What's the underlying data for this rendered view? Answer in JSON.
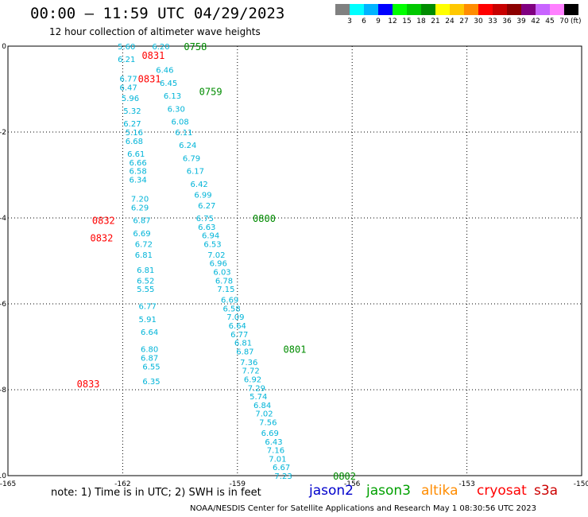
{
  "header": {
    "title": "00:00 – 11:59 UTC 04/29/2023",
    "subtitle": "12 hour collection of altimeter wave heights"
  },
  "colorbar": {
    "colors": [
      "#808080",
      "#00ffff",
      "#00b4ff",
      "#0000ff",
      "#00ff00",
      "#00c800",
      "#008c00",
      "#ffff00",
      "#ffc800",
      "#ff8c00",
      "#ff0000",
      "#c80000",
      "#8c0000",
      "#800080",
      "#c864ff",
      "#ff80ff",
      "#000000"
    ],
    "labels": [
      "3",
      "6",
      "9",
      "12",
      "15",
      "18",
      "21",
      "24",
      "27",
      "30",
      "33",
      "36",
      "39",
      "42",
      "45",
      "70"
    ],
    "unit": "(ft)"
  },
  "chart_data": {
    "type": "scatter",
    "title": "12 hour collection of altimeter wave heights",
    "xlim": [
      -165,
      -150
    ],
    "ylim": [
      -10,
      0
    ],
    "x_ticks": [
      "-165",
      "-162",
      "-159",
      "-156",
      "-153",
      "-150"
    ],
    "y_ticks": [
      "0",
      "-2",
      "-4",
      "-6",
      "-8",
      "-10"
    ],
    "grid": true,
    "series": [
      {
        "name": "jason3",
        "color": "#008c00",
        "points": [
          {
            "x": -161.0,
            "y": 0.0,
            "label": "6.20"
          },
          {
            "x": -160.9,
            "y": -0.55,
            "label": "6.46"
          },
          {
            "x": -160.8,
            "y": -0.85,
            "label": "6.45"
          },
          {
            "x": -160.7,
            "y": -1.15,
            "label": "6.13"
          },
          {
            "x": -160.6,
            "y": -1.45,
            "label": "6.30"
          },
          {
            "x": -160.5,
            "y": -1.75,
            "label": "6.08"
          },
          {
            "x": -160.4,
            "y": -2.0,
            "label": "6.11"
          },
          {
            "x": -160.3,
            "y": -2.3,
            "label": "6.24"
          },
          {
            "x": -160.2,
            "y": -2.6,
            "label": "6.79"
          },
          {
            "x": -160.1,
            "y": -2.9,
            "label": "6.17"
          },
          {
            "x": -160.0,
            "y": -3.2,
            "label": "6.42"
          },
          {
            "x": -159.9,
            "y": -3.45,
            "label": "6.99"
          },
          {
            "x": -159.8,
            "y": -3.7,
            "label": "6.27"
          },
          {
            "x": -159.85,
            "y": -4.0,
            "label": "6.75"
          },
          {
            "x": -159.8,
            "y": -4.2,
            "label": "6.63"
          },
          {
            "x": -159.7,
            "y": -4.4,
            "label": "6.94"
          },
          {
            "x": -159.65,
            "y": -4.6,
            "label": "6.53"
          },
          {
            "x": -159.55,
            "y": -4.85,
            "label": "7.02"
          },
          {
            "x": -159.5,
            "y": -5.05,
            "label": "6.96"
          },
          {
            "x": -159.4,
            "y": -5.25,
            "label": "6.03"
          },
          {
            "x": -159.35,
            "y": -5.45,
            "label": "6.78"
          },
          {
            "x": -159.3,
            "y": -5.65,
            "label": "7.15"
          },
          {
            "x": -159.2,
            "y": -5.9,
            "label": "6.69"
          },
          {
            "x": -159.15,
            "y": -6.1,
            "label": "6.58"
          },
          {
            "x": -159.05,
            "y": -6.3,
            "label": "7.09"
          },
          {
            "x": -159.0,
            "y": -6.5,
            "label": "6.64"
          },
          {
            "x": -158.95,
            "y": -6.7,
            "label": "6.77"
          },
          {
            "x": -158.85,
            "y": -6.9,
            "label": "6.81"
          },
          {
            "x": -158.8,
            "y": -7.1,
            "label": "6.87"
          },
          {
            "x": -158.7,
            "y": -7.35,
            "label": "7.36"
          },
          {
            "x": -158.65,
            "y": -7.55,
            "label": "7.72"
          },
          {
            "x": -158.6,
            "y": -7.75,
            "label": "6.92"
          },
          {
            "x": -158.5,
            "y": -7.95,
            "label": "7.29"
          },
          {
            "x": -158.45,
            "y": -8.15,
            "label": "5.74"
          },
          {
            "x": -158.35,
            "y": -8.35,
            "label": "6.84"
          },
          {
            "x": -158.3,
            "y": -8.55,
            "label": "7.02"
          },
          {
            "x": -158.2,
            "y": -8.75,
            "label": "7.56"
          },
          {
            "x": -158.15,
            "y": -9.0,
            "label": "6.69"
          },
          {
            "x": -158.05,
            "y": -9.2,
            "label": "6.43"
          },
          {
            "x": -158.0,
            "y": -9.4,
            "label": "7.16"
          },
          {
            "x": -157.95,
            "y": -9.6,
            "label": "7.01"
          },
          {
            "x": -157.85,
            "y": -9.8,
            "label": "6.67"
          },
          {
            "x": -157.8,
            "y": -10.0,
            "label": "7.23"
          }
        ]
      },
      {
        "name": "cryosat",
        "color": "#00cccc",
        "points": [
          {
            "x": -161.9,
            "y": 0.0,
            "label": "5.60"
          },
          {
            "x": -161.9,
            "y": -0.3,
            "label": "6.21"
          },
          {
            "x": -161.85,
            "y": -0.75,
            "label": "6.77"
          },
          {
            "x": -161.85,
            "y": -0.95,
            "label": "6.47"
          },
          {
            "x": -161.8,
            "y": -1.2,
            "label": "5.96"
          },
          {
            "x": -161.75,
            "y": -1.5,
            "label": "5.32"
          },
          {
            "x": -161.75,
            "y": -1.8,
            "label": "6.27"
          },
          {
            "x": -161.7,
            "y": -2.0,
            "label": "5.16"
          },
          {
            "x": -161.7,
            "y": -2.2,
            "label": "6.68"
          },
          {
            "x": -161.65,
            "y": -2.5,
            "label": "6.61"
          },
          {
            "x": -161.6,
            "y": -2.7,
            "label": "6.66"
          },
          {
            "x": -161.6,
            "y": -2.9,
            "label": "6.58"
          },
          {
            "x": -161.6,
            "y": -3.1,
            "label": "6.34"
          },
          {
            "x": -161.55,
            "y": -3.55,
            "label": "7.20"
          },
          {
            "x": -161.55,
            "y": -3.75,
            "label": "6.29"
          },
          {
            "x": -161.5,
            "y": -4.05,
            "label": "6.87"
          },
          {
            "x": -161.5,
            "y": -4.35,
            "label": "6.69"
          },
          {
            "x": -161.45,
            "y": -4.6,
            "label": "6.72"
          },
          {
            "x": -161.45,
            "y": -4.85,
            "label": "6.81"
          },
          {
            "x": -161.4,
            "y": -5.2,
            "label": "6.81"
          },
          {
            "x": -161.4,
            "y": -5.45,
            "label": "6.52"
          },
          {
            "x": -161.4,
            "y": -5.65,
            "label": "5.55"
          },
          {
            "x": -161.35,
            "y": -6.05,
            "label": "6.77"
          },
          {
            "x": -161.35,
            "y": -6.35,
            "label": "5.91"
          },
          {
            "x": -161.3,
            "y": -6.65,
            "label": "6.64"
          },
          {
            "x": -161.3,
            "y": -7.05,
            "label": "6.80"
          },
          {
            "x": -161.3,
            "y": -7.25,
            "label": "6.87"
          },
          {
            "x": -161.25,
            "y": -7.45,
            "label": "6.55"
          },
          {
            "x": -161.25,
            "y": -7.8,
            "label": "6.35"
          }
        ]
      }
    ],
    "pass_times": [
      {
        "text": "0758",
        "satellite": "jason3",
        "x": -160.1,
        "y": 0.0
      },
      {
        "text": "0759",
        "satellite": "jason3",
        "x": -159.7,
        "y": -1.05
      },
      {
        "text": "0800",
        "satellite": "jason3",
        "x": -158.3,
        "y": -4.0
      },
      {
        "text": "0801",
        "satellite": "jason3",
        "x": -157.5,
        "y": -7.05
      },
      {
        "text": "0802",
        "satellite": "jason3",
        "x": -156.2,
        "y": -10.0
      },
      {
        "text": "0831",
        "satellite": "cryosat",
        "x": -161.2,
        "y": -0.2
      },
      {
        "text": "0831",
        "satellite": "cryosat",
        "x": -161.3,
        "y": -0.75
      },
      {
        "text": "0832",
        "satellite": "cryosat",
        "x": -162.5,
        "y": -4.05
      },
      {
        "text": "0832",
        "satellite": "cryosat",
        "x": -162.55,
        "y": -4.45
      },
      {
        "text": "0833",
        "satellite": "cryosat",
        "x": -162.9,
        "y": -7.85
      }
    ]
  },
  "footer": {
    "note": "note:  1) Time is in UTC;  2) SWH is in feet",
    "satellites": [
      {
        "name": "jason2",
        "color": "#0000cc"
      },
      {
        "name": "jason3",
        "color": "#00a000"
      },
      {
        "name": "altika",
        "color": "#ff8c00"
      },
      {
        "name": "cryosat",
        "color": "#ff0000"
      },
      {
        "name": "s3a",
        "color": "#cc0000"
      }
    ],
    "credit": "NOAA/NESDIS Center for Satellite Applications and Research    May  1 08:30:56 UTC 2023"
  }
}
